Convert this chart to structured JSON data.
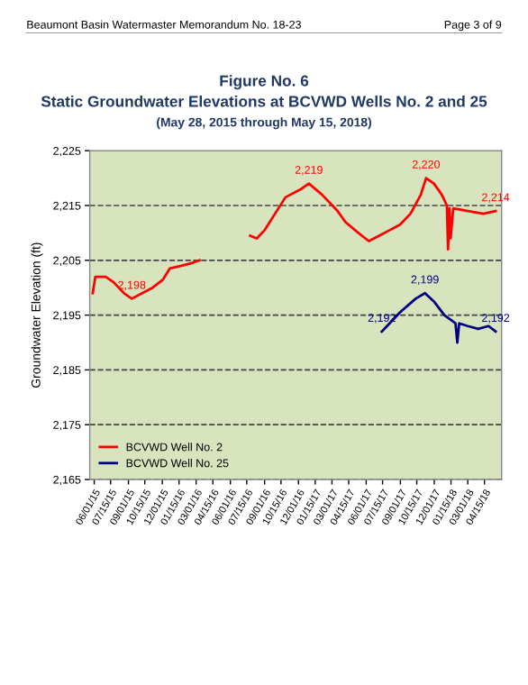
{
  "chart_data": {
    "type": "line",
    "title": "Figure No. 6\nStatic Groundwater Elevations at BCVWD Wells No. 2 and 25",
    "subtitle": "(May 28, 2015 through May 15, 2018)",
    "ylabel": "Groundwater Elevation (ft)",
    "annotations": [
      "Beaumont Basin Watermaster Memorandum No. 18-23",
      "Page 3 of 9"
    ],
    "series": [
      {
        "name": "BCVWD Well No. 2",
        "color": "#ff0000",
        "x": [
          "2015-05-28",
          "2015-06-04",
          "2015-07-02",
          "2015-07-23",
          "2015-08-20",
          "2015-09-10",
          "2015-10-08",
          "2015-11-05",
          "2015-12-03",
          "2015-12-21",
          "2016-01-21",
          "2016-02-18",
          "2016-03-10",
          "2016-06-01",
          "2016-07-24",
          "2016-08-11",
          "2016-09-01",
          "2016-09-29",
          "2016-10-27",
          "2016-12-08",
          "2016-12-29",
          "2017-02-02",
          "2017-03-16",
          "2017-04-06",
          "2017-05-11",
          "2017-06-08",
          "2017-07-06",
          "2017-08-03",
          "2017-08-31",
          "2017-09-28",
          "2017-10-26",
          "2017-11-09",
          "2017-11-30",
          "2017-12-21",
          "2018-01-04",
          "2018-01-07",
          "2018-01-11",
          "2018-01-14",
          "2018-01-21",
          "2018-03-01",
          "2018-04-12",
          "2018-05-15"
        ],
        "values": [
          2199,
          2202,
          2202,
          2201,
          2199,
          2198,
          2199,
          2200,
          2201.5,
          2203.5,
          2204,
          2204.5,
          2205,
          null,
          2209.5,
          2209,
          2210.5,
          2213.5,
          2216.5,
          2218,
          2219,
          2217,
          2214,
          2212,
          2210,
          2208.5,
          2209.5,
          2210.5,
          2211.5,
          2213.5,
          2217,
          2220,
          2219,
          2217,
          2215,
          2207,
          2214.5,
          2209,
          2214.5,
          2214,
          2213.5,
          2214
        ],
        "value_labels": [
          null,
          null,
          null,
          null,
          null,
          "2,198",
          null,
          null,
          null,
          null,
          null,
          null,
          null,
          null,
          null,
          null,
          null,
          null,
          null,
          null,
          "2,219",
          null,
          null,
          null,
          null,
          null,
          null,
          null,
          null,
          null,
          null,
          "2,220",
          null,
          null,
          null,
          null,
          null,
          null,
          null,
          null,
          null,
          "2,214"
        ]
      },
      {
        "name": "BCVWD Well No. 25",
        "color": "#000080",
        "x": [
          "2017-07-13",
          "2017-08-03",
          "2017-08-31",
          "2017-10-12",
          "2017-11-06",
          "2017-11-30",
          "2017-12-28",
          "2018-01-27",
          "2018-02-01",
          "2018-02-06",
          "2018-03-01",
          "2018-03-29",
          "2018-04-26",
          "2018-05-15"
        ],
        "values": [
          2192,
          2193.5,
          2195.5,
          2198,
          2199,
          2197.5,
          2195,
          2193.5,
          2190,
          2193.5,
          2193,
          2192.5,
          2193,
          2192
        ],
        "value_labels": [
          "2,192",
          null,
          null,
          null,
          "2,199",
          null,
          null,
          null,
          null,
          null,
          null,
          null,
          null,
          "2,192"
        ]
      }
    ],
    "xlim": [
      "2015-05-20",
      "2018-05-31"
    ],
    "xticks": [
      {
        "value": "2015-06-01",
        "label": "06/01/15"
      },
      {
        "value": "2015-07-15",
        "label": "07/15/15"
      },
      {
        "value": "2015-09-01",
        "label": "09/01/15"
      },
      {
        "value": "2015-10-15",
        "label": "10/15/15"
      },
      {
        "value": "2015-12-01",
        "label": "12/01/15"
      },
      {
        "value": "2016-01-15",
        "label": "01/15/16"
      },
      {
        "value": "2016-03-01",
        "label": "03/01/16"
      },
      {
        "value": "2016-04-15",
        "label": "04/15/16"
      },
      {
        "value": "2016-06-01",
        "label": "06/01/16"
      },
      {
        "value": "2016-07-15",
        "label": "07/15/16"
      },
      {
        "value": "2016-09-01",
        "label": "09/01/16"
      },
      {
        "value": "2016-10-15",
        "label": "10/15/16"
      },
      {
        "value": "2016-12-01",
        "label": "12/01/16"
      },
      {
        "value": "2017-01-15",
        "label": "01/15/17"
      },
      {
        "value": "2017-03-01",
        "label": "03/01/17"
      },
      {
        "value": "2017-04-15",
        "label": "04/15/17"
      },
      {
        "value": "2017-06-01",
        "label": "06/01/17"
      },
      {
        "value": "2017-07-15",
        "label": "07/15/17"
      },
      {
        "value": "2017-09-01",
        "label": "09/01/17"
      },
      {
        "value": "2017-10-15",
        "label": "10/15/17"
      },
      {
        "value": "2017-12-01",
        "label": "12/01/17"
      },
      {
        "value": "2018-01-15",
        "label": "01/15/18"
      },
      {
        "value": "2018-03-01",
        "label": "03/01/18"
      },
      {
        "value": "2018-04-15",
        "label": "04/15/18"
      }
    ],
    "ylim": [
      2165,
      2225
    ],
    "yticks": [
      {
        "value": 2165,
        "label": "2,165"
      },
      {
        "value": 2175,
        "label": "2,175"
      },
      {
        "value": 2185,
        "label": "2,185"
      },
      {
        "value": 2195,
        "label": "2,195"
      },
      {
        "value": 2205,
        "label": "2,205"
      },
      {
        "value": 2215,
        "label": "2,215"
      },
      {
        "value": 2225,
        "label": "2,225"
      }
    ],
    "grid": "y",
    "line_style": "solid",
    "legend": "bottom left"
  }
}
